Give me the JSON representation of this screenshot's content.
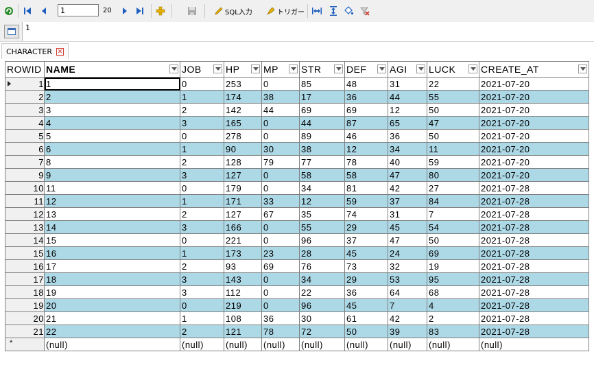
{
  "toolbar": {
    "page_value": "1",
    "page_total": "20",
    "sql_label": "SQL入力",
    "trigger_label": "トリガー"
  },
  "valuebar": {
    "value": "1"
  },
  "tab": {
    "label": "CHARACTER"
  },
  "columns": {
    "rowid": "ROWID",
    "name": "NAME",
    "job": "JOB",
    "hp": "HP",
    "mp": "MP",
    "str": "STR",
    "def": "DEF",
    "agi": "AGI",
    "luck": "LUCK",
    "create_at": "CREATE_AT"
  },
  "rows": [
    [
      "1",
      "1",
      "0",
      "253",
      "0",
      "85",
      "48",
      "31",
      "22",
      "2021-07-20"
    ],
    [
      "2",
      "2",
      "1",
      "174",
      "38",
      "17",
      "36",
      "44",
      "55",
      "2021-07-20"
    ],
    [
      "3",
      "3",
      "2",
      "142",
      "44",
      "69",
      "69",
      "12",
      "50",
      "2021-07-20"
    ],
    [
      "4",
      "4",
      "3",
      "165",
      "0",
      "44",
      "87",
      "65",
      "47",
      "2021-07-20"
    ],
    [
      "5",
      "5",
      "0",
      "278",
      "0",
      "89",
      "46",
      "36",
      "50",
      "2021-07-20"
    ],
    [
      "6",
      "6",
      "1",
      "90",
      "30",
      "38",
      "12",
      "34",
      "11",
      "2021-07-20"
    ],
    [
      "7",
      "8",
      "2",
      "128",
      "79",
      "77",
      "78",
      "40",
      "59",
      "2021-07-20"
    ],
    [
      "9",
      "9",
      "3",
      "127",
      "0",
      "58",
      "58",
      "47",
      "80",
      "2021-07-20"
    ],
    [
      "10",
      "11",
      "0",
      "179",
      "0",
      "34",
      "81",
      "42",
      "27",
      "2021-07-28"
    ],
    [
      "11",
      "12",
      "1",
      "171",
      "33",
      "12",
      "59",
      "37",
      "84",
      "2021-07-28"
    ],
    [
      "12",
      "13",
      "2",
      "127",
      "67",
      "35",
      "74",
      "31",
      "7",
      "2021-07-28"
    ],
    [
      "13",
      "14",
      "3",
      "166",
      "0",
      "55",
      "29",
      "45",
      "54",
      "2021-07-28"
    ],
    [
      "14",
      "15",
      "0",
      "221",
      "0",
      "96",
      "37",
      "47",
      "50",
      "2021-07-28"
    ],
    [
      "15",
      "16",
      "1",
      "173",
      "23",
      "28",
      "45",
      "24",
      "69",
      "2021-07-28"
    ],
    [
      "16",
      "17",
      "2",
      "93",
      "69",
      "76",
      "73",
      "32",
      "19",
      "2021-07-28"
    ],
    [
      "17",
      "18",
      "3",
      "143",
      "0",
      "34",
      "29",
      "53",
      "95",
      "2021-07-28"
    ],
    [
      "18",
      "19",
      "3",
      "112",
      "0",
      "22",
      "36",
      "64",
      "68",
      "2021-07-28"
    ],
    [
      "19",
      "20",
      "0",
      "219",
      "0",
      "96",
      "45",
      "7",
      "4",
      "2021-07-28"
    ],
    [
      "20",
      "21",
      "1",
      "108",
      "36",
      "30",
      "61",
      "42",
      "2",
      "2021-07-28"
    ],
    [
      "21",
      "22",
      "2",
      "121",
      "78",
      "72",
      "50",
      "39",
      "83",
      "2021-07-28"
    ]
  ],
  "new_row": {
    "marker": "*",
    "null_text": "(null)"
  },
  "colors": {
    "alt_row": "#add8e6",
    "nav_blue": "#1f5fbf",
    "add_yellow": "#e8b400",
    "refresh_green": "#2a8a2a"
  }
}
